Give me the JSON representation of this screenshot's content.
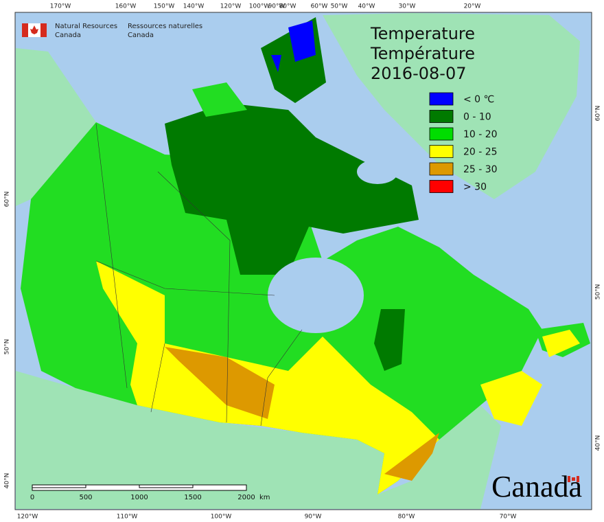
{
  "header": {
    "org_en": [
      "Natural Resources",
      "Canada"
    ],
    "org_fr": [
      "Ressources naturelles",
      "Canada"
    ]
  },
  "title": [
    "Temperature",
    "Température",
    "2016-08-07"
  ],
  "legend": [
    {
      "label": "< 0 ℃",
      "color": "#0000ff"
    },
    {
      "label": "0 - 10",
      "color": "#007a00"
    },
    {
      "label": "10 - 20",
      "color": "#00dd00"
    },
    {
      "label": "20 - 25",
      "color": "#ffff00"
    },
    {
      "label": "25 - 30",
      "color": "#dd9900"
    },
    {
      "label": "> 30",
      "color": "#ff0000"
    }
  ],
  "top_longitudes": [
    "170°W",
    "160°W",
    "150°W",
    "140°W",
    "120°W",
    "100°W",
    "90°W",
    "80°W",
    "60°W",
    "50°W",
    "40°W",
    "30°W",
    "20°W"
  ],
  "bottom_longitudes": [
    "120°W",
    "110°W",
    "100°W",
    "90°W",
    "80°W",
    "70°W"
  ],
  "left_latitudes": [
    "60°N",
    "50°N",
    "40°N"
  ],
  "right_latitudes": [
    "60°N",
    "50°N",
    "40°N"
  ],
  "scale_bar": {
    "labels": [
      "0",
      "500",
      "1000",
      "1500",
      "2000"
    ],
    "unit": "km"
  },
  "wordmark": "Canada"
}
